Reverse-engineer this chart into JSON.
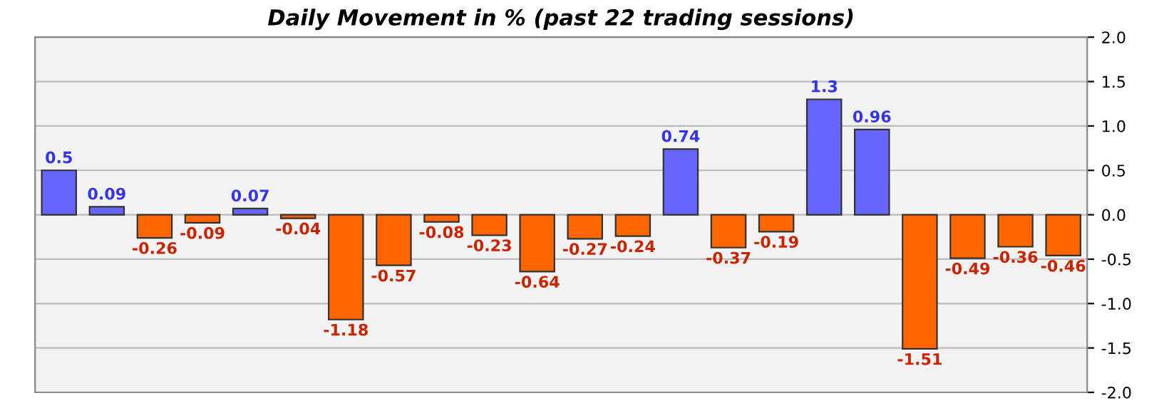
{
  "chart_data": {
    "type": "bar",
    "title": "Daily Movement in % (past 22 trading sessions)",
    "categories": [
      null,
      null,
      null,
      null,
      null,
      null,
      null,
      null,
      null,
      null,
      null,
      null,
      null,
      null,
      null,
      null,
      null,
      null,
      null,
      null,
      null,
      null
    ],
    "values": [
      0.5,
      0.09,
      -0.26,
      -0.09,
      0.07,
      -0.04,
      -1.18,
      -0.57,
      -0.08,
      -0.23,
      -0.64,
      -0.27,
      -0.24,
      0.74,
      -0.37,
      -0.19,
      1.3,
      0.96,
      -1.51,
      -0.49,
      -0.36,
      -0.46
    ],
    "colors": [
      "#6666ff",
      "#6666ff",
      "#ff6600",
      "#ff6600",
      "#6666ff",
      "#ff6600",
      "#ff6600",
      "#ff6600",
      "#ff6600",
      "#ff6600",
      "#ff6600",
      "#ff6600",
      "#ff6600",
      "#6666ff",
      "#ff6600",
      "#ff6600",
      "#6666ff",
      "#6666ff",
      "#ff6600",
      "#ff6600",
      "#ff6600",
      "#ff6600"
    ],
    "ylim": [
      -2.0,
      2.0
    ],
    "yticks": [
      {
        "value": 2.0,
        "label": "2.0"
      },
      {
        "value": 1.5,
        "label": "1.5"
      },
      {
        "value": 1.0,
        "label": "1.0"
      },
      {
        "value": 0.5,
        "label": "0.5"
      },
      {
        "value": 0.0,
        "label": "0.0"
      },
      {
        "value": -0.5,
        "label": "-0.5"
      },
      {
        "value": -1.0,
        "label": "-1.0"
      },
      {
        "value": -1.5,
        "label": "-1.5"
      },
      {
        "value": -2.0,
        "label": "-2.0"
      }
    ],
    "grid": "y",
    "data_labels": true
  }
}
